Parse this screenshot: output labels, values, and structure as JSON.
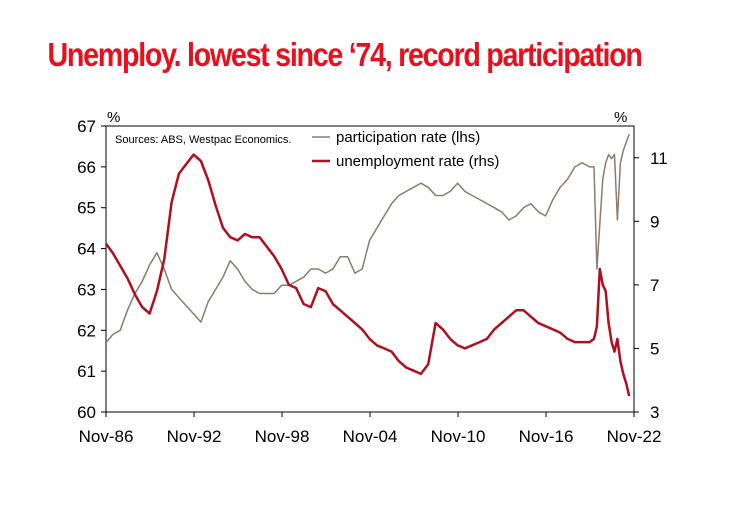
{
  "title": "Unemploy. lowest since ‘74, record participation",
  "chart_data": {
    "type": "line",
    "title": "Unemploy. lowest since ‘74, record participation",
    "source": "Sources: ABS, Westpac Economics.",
    "left_axis": {
      "unit": "%",
      "range": [
        60,
        67
      ],
      "ticks": [
        60,
        61,
        62,
        63,
        64,
        65,
        66,
        67
      ]
    },
    "right_axis": {
      "unit": "%",
      "range": [
        3,
        12
      ],
      "ticks": [
        3,
        5,
        7,
        9,
        11
      ]
    },
    "x_axis": {
      "range": [
        1986.83,
        2022.83
      ],
      "tick_labels": [
        "Nov-86",
        "Nov-92",
        "Nov-98",
        "Nov-04",
        "Nov-10",
        "Nov-16",
        "Nov-22"
      ],
      "tick_values": [
        1986.83,
        1992.83,
        1998.83,
        2004.83,
        2010.83,
        2016.83,
        2022.83
      ]
    },
    "colors": {
      "participation": "#8c7b70",
      "unemployment": "#b0101e",
      "title": "#e8101c"
    },
    "series": [
      {
        "name": "participation rate (lhs)",
        "axis": "left",
        "x": [
          1986.83,
          1987.3,
          1987.8,
          1988.3,
          1988.8,
          1989.3,
          1989.8,
          1990.3,
          1990.8,
          1991.3,
          1991.8,
          1992.3,
          1992.8,
          1993.3,
          1993.8,
          1994.3,
          1994.8,
          1995.3,
          1995.8,
          1996.3,
          1996.8,
          1997.3,
          1997.8,
          1998.3,
          1998.8,
          1999.3,
          1999.8,
          2000.3,
          2000.8,
          2001.3,
          2001.8,
          2002.3,
          2002.8,
          2003.3,
          2003.8,
          2004.3,
          2004.8,
          2005.3,
          2005.8,
          2006.3,
          2006.8,
          2007.3,
          2007.8,
          2008.3,
          2008.8,
          2009.3,
          2009.8,
          2010.3,
          2010.8,
          2011.3,
          2011.8,
          2012.3,
          2012.8,
          2013.3,
          2013.8,
          2014.3,
          2014.8,
          2015.3,
          2015.8,
          2016.3,
          2016.8,
          2017.3,
          2017.8,
          2018.3,
          2018.8,
          2019.3,
          2019.8,
          2020.1,
          2020.3,
          2020.5,
          2020.7,
          2020.9,
          2021.1,
          2021.3,
          2021.5,
          2021.7,
          2021.9,
          2022.1,
          2022.3,
          2022.5
        ],
        "values": [
          61.7,
          61.9,
          62.0,
          62.5,
          62.9,
          63.2,
          63.6,
          63.9,
          63.5,
          63.0,
          62.8,
          62.6,
          62.4,
          62.2,
          62.7,
          63.0,
          63.3,
          63.7,
          63.5,
          63.2,
          63.0,
          62.9,
          62.9,
          62.9,
          63.1,
          63.1,
          63.2,
          63.3,
          63.5,
          63.5,
          63.4,
          63.5,
          63.8,
          63.8,
          63.4,
          63.5,
          64.2,
          64.5,
          64.8,
          65.1,
          65.3,
          65.4,
          65.5,
          65.6,
          65.5,
          65.3,
          65.3,
          65.4,
          65.6,
          65.4,
          65.3,
          65.2,
          65.1,
          65.0,
          64.9,
          64.7,
          64.8,
          65.0,
          65.1,
          64.9,
          64.8,
          65.2,
          65.5,
          65.7,
          66.0,
          66.1,
          66.0,
          66.0,
          63.5,
          64.6,
          65.7,
          66.1,
          66.3,
          66.2,
          66.3,
          64.7,
          66.1,
          66.4,
          66.6,
          66.8
        ]
      },
      {
        "name": "unemployment rate (rhs)",
        "axis": "right",
        "x": [
          1986.83,
          1987.3,
          1987.8,
          1988.3,
          1988.8,
          1989.3,
          1989.8,
          1990.3,
          1990.8,
          1991.3,
          1991.8,
          1992.3,
          1992.8,
          1993.3,
          1993.8,
          1994.3,
          1994.8,
          1995.3,
          1995.8,
          1996.3,
          1996.8,
          1997.3,
          1997.8,
          1998.3,
          1998.8,
          1999.3,
          1999.8,
          2000.3,
          2000.8,
          2001.3,
          2001.8,
          2002.3,
          2002.8,
          2003.3,
          2003.8,
          2004.3,
          2004.8,
          2005.3,
          2005.8,
          2006.3,
          2006.8,
          2007.3,
          2007.8,
          2008.3,
          2008.8,
          2009.3,
          2009.8,
          2010.3,
          2010.8,
          2011.3,
          2011.8,
          2012.3,
          2012.8,
          2013.3,
          2013.8,
          2014.3,
          2014.8,
          2015.3,
          2015.8,
          2016.3,
          2016.8,
          2017.3,
          2017.8,
          2018.3,
          2018.8,
          2019.3,
          2019.8,
          2020.1,
          2020.3,
          2020.5,
          2020.7,
          2020.9,
          2021.1,
          2021.3,
          2021.5,
          2021.7,
          2021.9,
          2022.1,
          2022.3,
          2022.5
        ],
        "values": [
          8.3,
          8.0,
          7.6,
          7.2,
          6.7,
          6.3,
          6.1,
          6.8,
          7.8,
          9.6,
          10.5,
          10.8,
          11.1,
          10.9,
          10.3,
          9.5,
          8.8,
          8.5,
          8.4,
          8.6,
          8.5,
          8.5,
          8.2,
          7.9,
          7.5,
          7.0,
          6.9,
          6.4,
          6.3,
          6.9,
          6.8,
          6.4,
          6.2,
          6.0,
          5.8,
          5.6,
          5.3,
          5.1,
          5.0,
          4.9,
          4.6,
          4.4,
          4.3,
          4.2,
          4.5,
          5.8,
          5.6,
          5.3,
          5.1,
          5.0,
          5.1,
          5.2,
          5.3,
          5.6,
          5.8,
          6.0,
          6.2,
          6.2,
          6.0,
          5.8,
          5.7,
          5.6,
          5.5,
          5.3,
          5.2,
          5.2,
          5.2,
          5.3,
          5.7,
          7.5,
          7.0,
          6.8,
          5.8,
          5.2,
          4.9,
          5.3,
          4.6,
          4.2,
          3.9,
          3.5
        ]
      }
    ]
  }
}
